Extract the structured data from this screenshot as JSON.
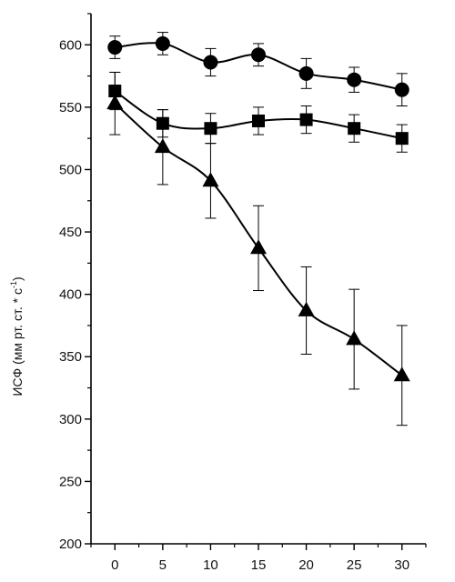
{
  "chart_data": {
    "type": "line",
    "title": "",
    "xlabel": "",
    "ylabel": "ИСФ (мм рт. ст. * с",
    "ylabel_superscript": "-1",
    "ylabel_suffix": ")",
    "x": [
      0,
      5,
      10,
      15,
      20,
      25,
      30
    ],
    "xlim": [
      -2.5,
      32.5
    ],
    "ylim": [
      200,
      625
    ],
    "xticks": [
      0,
      5,
      10,
      15,
      20,
      25,
      30
    ],
    "yticks": [
      200,
      250,
      300,
      350,
      400,
      450,
      500,
      550,
      600
    ],
    "grid": false,
    "legend": "none",
    "line_color": "#000000",
    "series": [
      {
        "marker": "circle",
        "values": [
          598,
          601,
          586,
          592,
          577,
          572,
          564
        ],
        "error": [
          9,
          9,
          11,
          9,
          12,
          10,
          13
        ]
      },
      {
        "marker": "square",
        "values": [
          563,
          537,
          533,
          539,
          540,
          533,
          525
        ],
        "error": [
          15,
          11,
          12,
          11,
          11,
          11,
          11
        ]
      },
      {
        "marker": "triangle",
        "values": [
          553,
          518,
          491,
          437,
          387,
          364,
          335
        ],
        "error": [
          25,
          30,
          30,
          34,
          35,
          40,
          40
        ]
      }
    ]
  }
}
